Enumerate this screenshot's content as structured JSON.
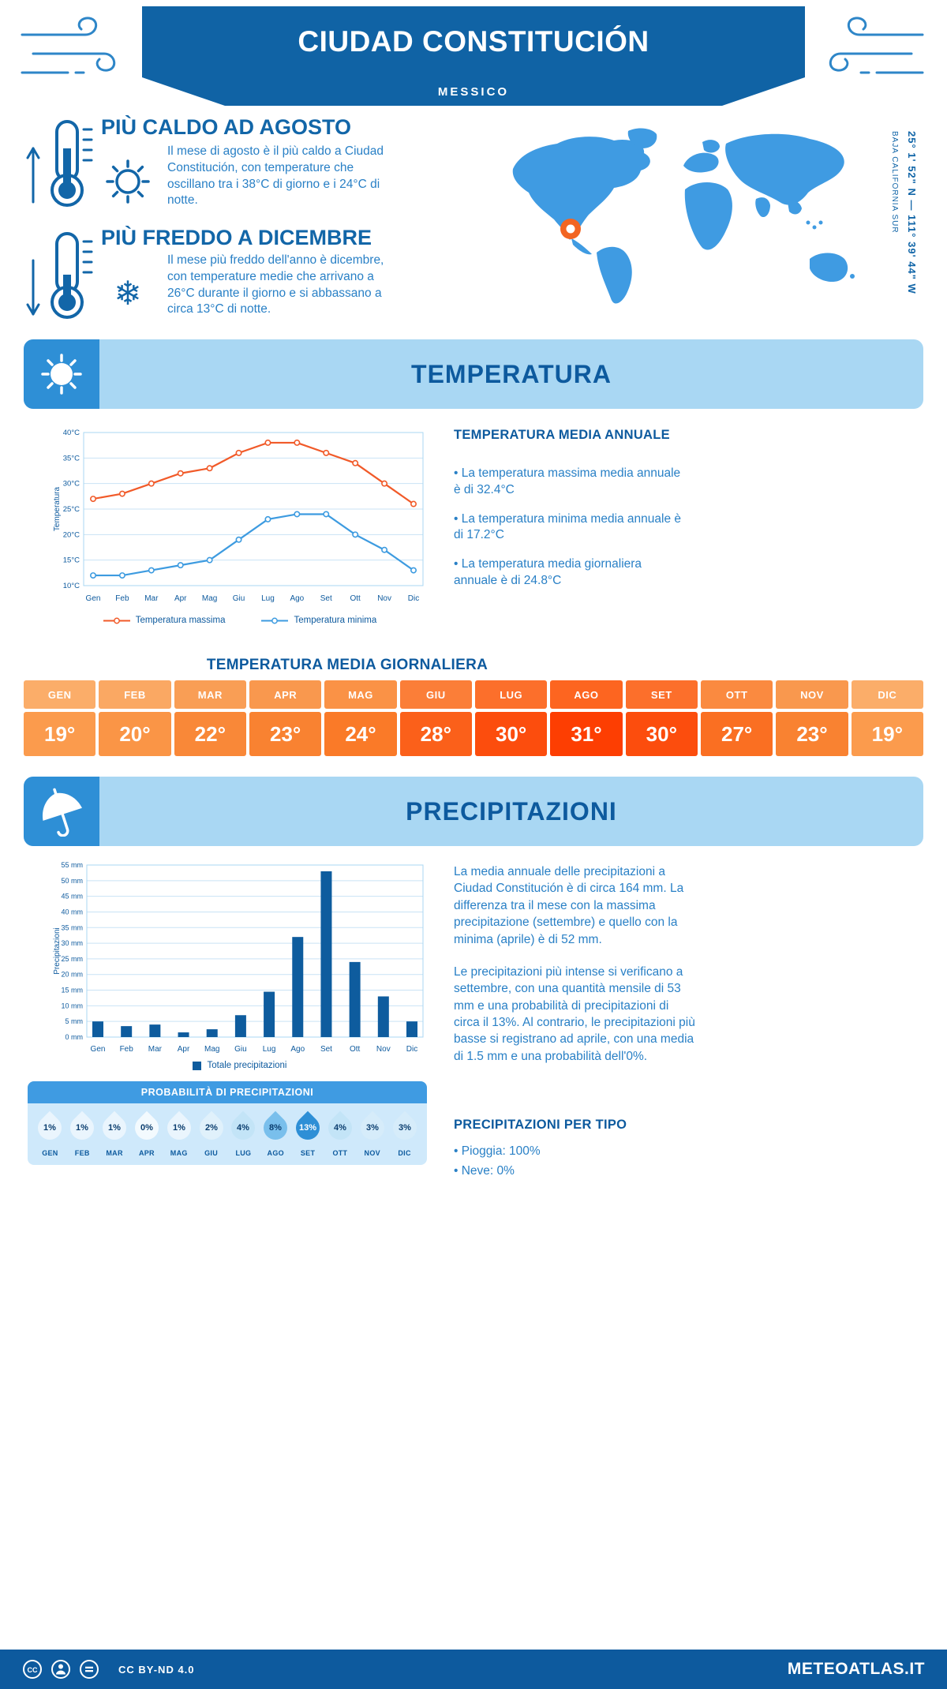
{
  "palette": {
    "header_blue": "#1063A5",
    "deep_blue": "#0D5A9E",
    "body_text_blue": "#2980C6",
    "accent_blue": "#3F9BE2",
    "band_light_blue": "#A9D7F3",
    "pale_blue": "#CFE9FB",
    "map_blue": "#3F9BE2",
    "marker_orange": "#F26522",
    "line_max": "#F15A29",
    "line_min": "#3D9BE0",
    "bar_blue": "#0E5C9E"
  },
  "header": {
    "title": "CIUDAD CONSTITUCIÓN",
    "subtitle": "MESSICO"
  },
  "intro": {
    "hot": {
      "title": "PIÙ CALDO AD AGOSTO",
      "text": "Il mese di agosto è il più caldo a Ciudad Constitución, con temperature che oscillano tra i 38°C di giorno e i 24°C di notte."
    },
    "cold": {
      "title": "PIÙ FREDDO A DICEMBRE",
      "text": "Il mese più freddo dell'anno è dicembre, con temperature medie che arrivano a 26°C durante il giorno e si abbassano a circa 13°C di notte."
    },
    "map": {
      "coordinates": "25° 1' 52\" N — 111° 39' 44\" W",
      "region": "BAJA CALIFORNIA SUR"
    }
  },
  "temperature": {
    "banner_title": "TEMPERATURA",
    "annual_title": "TEMPERATURA MEDIA ANNUALE",
    "annual_bullets": [
      "• La temperatura massima media annuale è di 32.4°C",
      "• La temperatura minima media annuale è di 17.2°C",
      "• La temperatura media giornaliera annuale è di 24.8°C"
    ],
    "daily_title": "TEMPERATURA MEDIA GIORNALIERA",
    "daily": {
      "months": [
        "GEN",
        "FEB",
        "MAR",
        "APR",
        "MAG",
        "GIU",
        "LUG",
        "AGO",
        "SET",
        "OTT",
        "NOV",
        "DIC"
      ],
      "values": [
        "19°",
        "20°",
        "22°",
        "23°",
        "24°",
        "28°",
        "30°",
        "31°",
        "30°",
        "27°",
        "23°",
        "19°"
      ],
      "header_colors": [
        "#FBAD69",
        "#FAA863",
        "#F99E55",
        "#F9984E",
        "#FA9246",
        "#FB7E38",
        "#FC6F2B",
        "#FD6520",
        "#FC6F2B",
        "#FA8A40",
        "#F9984E",
        "#FBAD69"
      ],
      "value_colors": [
        "#FB9B4D",
        "#FA9546",
        "#F98838",
        "#F98231",
        "#FA7A28",
        "#FB601A",
        "#FC4D0D",
        "#FD3E02",
        "#FC4D0D",
        "#FA6F22",
        "#F98231",
        "#FB9B4D"
      ]
    }
  },
  "precipitation": {
    "banner_title": "PRECIPITAZIONI",
    "paragraph1": "La media annuale delle precipitazioni a Ciudad Constitución è di circa 164 mm. La differenza tra il mese con la massima precipitazione (settembre) e quello con la minima (aprile) è di 52 mm.",
    "paragraph2": "Le precipitazioni più intense si verificano a settembre, con una quantità mensile di 53 mm e una probabilità di precipitazioni di circa il 13%. Al contrario, le precipitazioni più basse si registrano ad aprile, con una media di 1.5 mm e una probabilità dell'0%.",
    "types_title": "PRECIPITAZIONI PER TIPO",
    "types": [
      "• Pioggia: 100%",
      "• Neve: 0%"
    ],
    "probability": {
      "title": "PROBABILITÀ DI PRECIPITAZIONI",
      "months": [
        "GEN",
        "FEB",
        "MAR",
        "APR",
        "MAG",
        "GIU",
        "LUG",
        "AGO",
        "SET",
        "OTT",
        "NOV",
        "DIC"
      ],
      "values": [
        "1%",
        "1%",
        "1%",
        "0%",
        "1%",
        "2%",
        "4%",
        "8%",
        "13%",
        "4%",
        "3%",
        "3%"
      ],
      "drop_colors": [
        "#EAF5FD",
        "#EAF5FD",
        "#EAF5FD",
        "#F3FAFE",
        "#EAF5FD",
        "#E0F1FB",
        "#C3E4F7",
        "#79BFEC",
        "#2E8FD6",
        "#C3E4F7",
        "#D6ECFA",
        "#D6ECFA"
      ],
      "drop_text_colors": [
        "#0B3E6F",
        "#0B3E6F",
        "#0B3E6F",
        "#0B3E6F",
        "#0B3E6F",
        "#0B3E6F",
        "#0B3E6F",
        "#0B3E6F",
        "#FFFFFF",
        "#0B3E6F",
        "#0B3E6F",
        "#0B3E6F"
      ]
    }
  },
  "footer": {
    "license": "CC BY-ND 4.0",
    "site": "METEOATLAS.IT"
  },
  "chart_data": [
    {
      "type": "line",
      "title": "",
      "categories": [
        "Gen",
        "Feb",
        "Mar",
        "Apr",
        "Mag",
        "Giu",
        "Lug",
        "Ago",
        "Set",
        "Ott",
        "Nov",
        "Dic"
      ],
      "series": [
        {
          "name": "Temperatura massima",
          "color": "#F15A29",
          "values": [
            27,
            28,
            30,
            32,
            33,
            36,
            38,
            38,
            36,
            34,
            30,
            26
          ]
        },
        {
          "name": "Temperatura minima",
          "color": "#3D9BE0",
          "values": [
            12,
            12,
            13,
            14,
            15,
            19,
            23,
            24,
            24,
            20,
            17,
            13
          ]
        }
      ],
      "xlabel": "",
      "ylabel": "Temperatura",
      "ylim": [
        10,
        40
      ],
      "ytick_step": 5,
      "ytick_suffix": "°C",
      "grid": true,
      "legend_position": "bottom"
    },
    {
      "type": "bar",
      "title": "",
      "categories": [
        "Gen",
        "Feb",
        "Mar",
        "Apr",
        "Mag",
        "Giu",
        "Lug",
        "Ago",
        "Set",
        "Ott",
        "Nov",
        "Dic"
      ],
      "series": [
        {
          "name": "Totale precipitazioni",
          "color": "#0E5C9E",
          "values": [
            5,
            3.5,
            4,
            1.5,
            2.5,
            7,
            14.5,
            32,
            53,
            24,
            13,
            5
          ]
        }
      ],
      "xlabel": "",
      "ylabel": "Precipitazioni",
      "ylim": [
        0,
        55
      ],
      "ytick_step": 5,
      "ytick_suffix": " mm",
      "grid": true,
      "legend_position": "bottom"
    }
  ]
}
